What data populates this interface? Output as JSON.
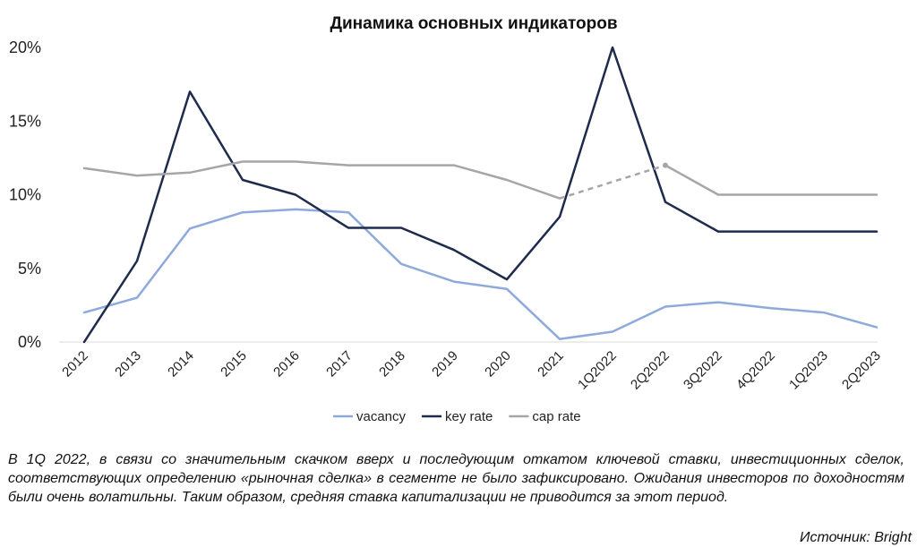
{
  "chart_data": {
    "type": "line",
    "title": "Динамика основных индикаторов",
    "categories": [
      "2012",
      "2013",
      "2014",
      "2015",
      "2016",
      "2017",
      "2018",
      "2019",
      "2020",
      "2021",
      "1Q2022",
      "2Q2022",
      "3Q2022",
      "4Q2022",
      "1Q2023",
      "2Q2023"
    ],
    "y_ticks": [
      "0%",
      "5%",
      "10%",
      "15%",
      "20%"
    ],
    "ylim": [
      0,
      20
    ],
    "y_unit": "%",
    "grid": false,
    "legend_position": "bottom",
    "series": [
      {
        "name": "vacancy",
        "color": "#8EA9DB",
        "values": [
          2.0,
          3.0,
          7.7,
          8.8,
          9.0,
          8.8,
          5.3,
          4.1,
          3.6,
          0.2,
          0.7,
          2.4,
          2.7,
          2.3,
          2.0,
          1.0
        ]
      },
      {
        "name": "key rate",
        "color": "#1F2B4D",
        "values": [
          0.0,
          5.5,
          17.0,
          11.0,
          10.0,
          7.75,
          7.75,
          6.25,
          4.25,
          8.5,
          20.0,
          9.5,
          7.5,
          7.5,
          7.5,
          7.5
        ]
      },
      {
        "name": "cap rate",
        "color": "#A6A6A6",
        "values": [
          11.8,
          11.3,
          11.5,
          12.25,
          12.25,
          12.0,
          12.0,
          12.0,
          11.0,
          9.75,
          null,
          12.0,
          10.0,
          10.0,
          10.0,
          10.0
        ],
        "dashed_segment": [
          "2021",
          "2Q2022"
        ]
      }
    ]
  },
  "caption": "В 1Q 2022, в связи со значительным скачком вверх и последующим откатом ключевой ставки, инвестиционных сделок, соответствующих определению «рыночная сделка» в сегменте не было зафиксировано. Ожидания инвесторов по доходностям были очень волатильны. Таким образом, средняя ставка капитализации не приводится за этот период.",
  "source": "Источник: Bright"
}
